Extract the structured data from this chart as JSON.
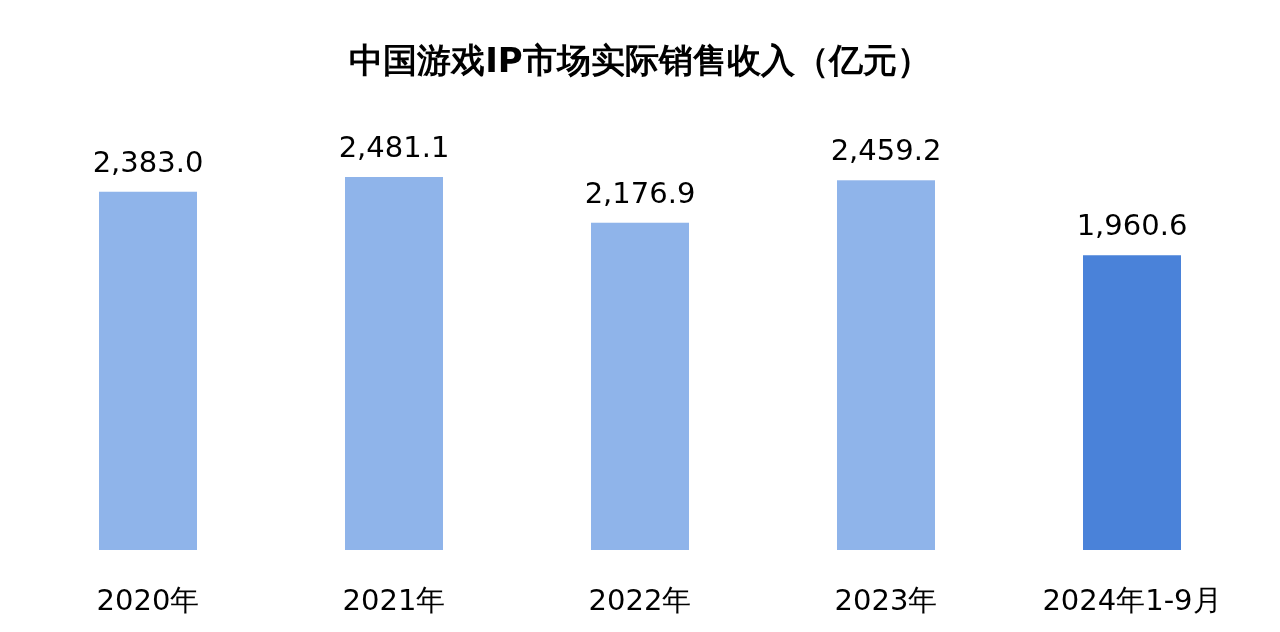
{
  "chart_data": {
    "type": "bar",
    "title": "中国游戏IP市场实际销售收入（亿元）",
    "categories": [
      "2020年",
      "2021年",
      "2022年",
      "2023年",
      "2024年1-9月"
    ],
    "values": [
      2383.0,
      2481.1,
      2176.9,
      2459.2,
      1960.6
    ],
    "value_labels": [
      "2,383.0",
      "2,481.1",
      "2,176.9",
      "2,459.2",
      "1,960.6"
    ],
    "colors": [
      "#8fb4ea",
      "#8fb4ea",
      "#8fb4ea",
      "#8fb4ea",
      "#4a82d9"
    ]
  }
}
